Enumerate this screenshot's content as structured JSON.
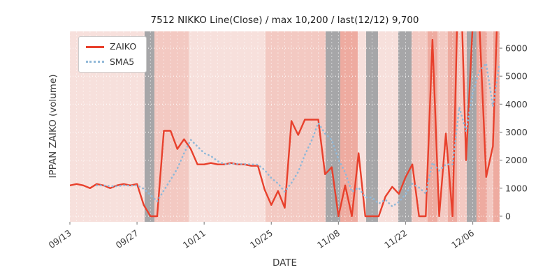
{
  "title": "7512 NIKKO Line(Close) / max 10,200 / last(12/12) 9,700",
  "xlabel": "DATE",
  "ylabel": "IPPAN ZAIKO (volume)",
  "legend": {
    "zaiko": "ZAIKO",
    "sma5": "SMA5"
  },
  "chart_data": {
    "type": "line",
    "title": "7512 NIKKO Line(Close) / max 10,200 / last(12/12) 9,700",
    "xlabel": "DATE",
    "ylabel": "IPPAN ZAIKO (volume)",
    "legend_position": "upper left",
    "grid": "white dashed gridlines on shaded background",
    "y_tick_side": "right",
    "ylim": [
      -200,
      6600
    ],
    "y_ticks": [
      0,
      1000,
      2000,
      3000,
      4000,
      5000,
      6000
    ],
    "x_tick_labels": [
      "09/13",
      "09/27",
      "10/11",
      "10/25",
      "11/08",
      "11/22",
      "12/06"
    ],
    "x_tick_indices": [
      0,
      10,
      20,
      30,
      40,
      50,
      60
    ],
    "dates": [
      "09/13",
      "09/16",
      "09/17",
      "09/18",
      "09/19",
      "09/20",
      "09/23",
      "09/24",
      "09/25",
      "09/26",
      "09/27",
      "09/30",
      "10/01",
      "10/02",
      "10/03",
      "10/04",
      "10/07",
      "10/08",
      "10/09",
      "10/10",
      "10/11",
      "10/14",
      "10/15",
      "10/16",
      "10/17",
      "10/18",
      "10/21",
      "10/22",
      "10/23",
      "10/24",
      "10/25",
      "10/28",
      "10/29",
      "10/30",
      "10/31",
      "11/01",
      "11/04",
      "11/05",
      "11/06",
      "11/07",
      "11/08",
      "11/11",
      "11/12",
      "11/13",
      "11/14",
      "11/15",
      "11/18",
      "11/19",
      "11/20",
      "11/21",
      "11/22",
      "11/25",
      "11/26",
      "11/27",
      "11/28",
      "11/29",
      "12/02",
      "12/03",
      "12/04",
      "12/05",
      "12/06",
      "12/09",
      "12/10",
      "12/11",
      "12/12"
    ],
    "series": [
      {
        "name": "ZAIKO",
        "style": "solid",
        "color": "#e8402c",
        "values": [
          1100,
          1150,
          1100,
          1000,
          1150,
          1100,
          1000,
          1100,
          1150,
          1100,
          1150,
          400,
          0,
          0,
          3050,
          3050,
          2400,
          2750,
          2400,
          1850,
          1850,
          1900,
          1850,
          1850,
          1900,
          1850,
          1850,
          1800,
          1800,
          950,
          400,
          900,
          300,
          3400,
          2900,
          3450,
          3450,
          3450,
          1500,
          1750,
          0,
          1100,
          0,
          2250,
          0,
          0,
          0,
          700,
          1050,
          800,
          1400,
          1850,
          0,
          0,
          6300,
          0,
          2950,
          0,
          10200,
          2000,
          6900,
          6800,
          1400,
          2500,
          9700
        ]
      },
      {
        "name": "SMA5",
        "style": "dotted",
        "color": "#92b9d8",
        "derived": "5-period simple moving average of ZAIKO (values clipped to plot area; first 4 points undefined)"
      }
    ],
    "annotations": {
      "max_value": 10200,
      "last_date": "12/12",
      "last_value": 9700
    },
    "band_colors": {
      "light": "#f7e0dc",
      "medium": "#f3c9c2",
      "strong": "#eeaba0",
      "gray": "#a6a6a8"
    },
    "background_bands": [
      {
        "start": 0,
        "end": 11.13,
        "tone": "light"
      },
      {
        "start": 11.13,
        "end": 12.59,
        "tone": "gray"
      },
      {
        "start": 12.59,
        "end": 17.69,
        "tone": "medium"
      },
      {
        "start": 17.69,
        "end": 29.14,
        "tone": "light"
      },
      {
        "start": 29.14,
        "end": 38.09,
        "tone": "medium"
      },
      {
        "start": 38.09,
        "end": 40.27,
        "tone": "gray"
      },
      {
        "start": 40.27,
        "end": 42.87,
        "tone": "strong"
      },
      {
        "start": 42.87,
        "end": 44.12,
        "tone": "light"
      },
      {
        "start": 44.12,
        "end": 45.89,
        "tone": "gray"
      },
      {
        "start": 45.89,
        "end": 48.91,
        "tone": "light"
      },
      {
        "start": 48.91,
        "end": 50.89,
        "tone": "gray"
      },
      {
        "start": 50.89,
        "end": 53.28,
        "tone": "medium"
      },
      {
        "start": 53.28,
        "end": 54.74,
        "tone": "strong"
      },
      {
        "start": 54.74,
        "end": 56.3,
        "tone": "medium"
      },
      {
        "start": 56.3,
        "end": 57.65,
        "tone": "strong"
      },
      {
        "start": 57.65,
        "end": 59.11,
        "tone": "medium"
      },
      {
        "start": 59.11,
        "end": 60.56,
        "tone": "gray"
      },
      {
        "start": 60.56,
        "end": 62.12,
        "tone": "strong"
      },
      {
        "start": 62.12,
        "end": 63.06,
        "tone": "medium"
      },
      {
        "start": 63.06,
        "end": 64,
        "tone": "strong"
      }
    ]
  }
}
